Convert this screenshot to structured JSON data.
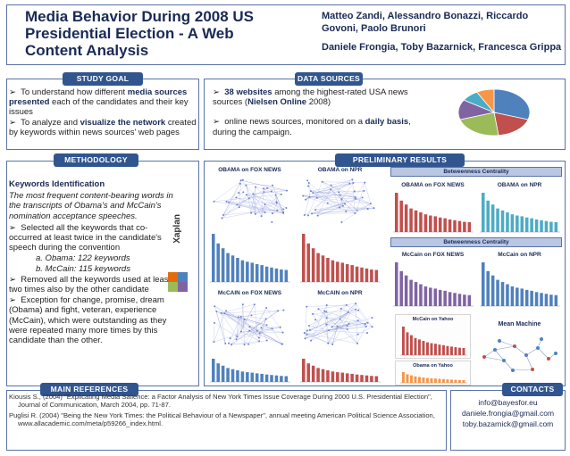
{
  "title": {
    "main": "Media Behavior During 2008 US Presidential Election - A Web Content Analysis",
    "authors_line1": "Matteo Zandi, Alessandro Bonazzi, Riccardo Govoni, Paolo Brunori",
    "authors_line2": "Daniele Frongia, Toby Bazarnick, Francesca Grippa"
  },
  "study_goal": {
    "header": "STUDY GOAL",
    "items": [
      [
        "To understand how different ",
        "media sources presented",
        " each of the candidates and their key issues"
      ],
      [
        "To analyze and ",
        "visualize the network",
        " created by keywords within news sources' web pages"
      ]
    ]
  },
  "data_sources": {
    "header": "DATA SOURCES",
    "item1_bold": "38 websites",
    "item1_a": " among the highest-rated USA news sources (",
    "item1_bold2": "Nielsen Online",
    "item1_b": " 2008)",
    "item2_a": "online news sources, monitored on a ",
    "item2_bold": "daily basis",
    "item2_b": ", during the campaign.",
    "pie": {
      "values": [
        30,
        18,
        22,
        14,
        8,
        8
      ],
      "colors": [
        "#4f81bd",
        "#c0504d",
        "#9bbb59",
        "#8064a2",
        "#4bacc6",
        "#f79646"
      ]
    }
  },
  "methodology": {
    "header": "METHODOLOGY",
    "subtitle": "Keywords Identification",
    "intro": "The most frequent content-bearing words in the transcripts of Obama's and McCain's nomination acceptance speeches.",
    "step1": "Selected all the keywords that co-occurred at least twice in the candidate's speech during the convention",
    "sub_a": "a.  Obama: 122 keywords",
    "sub_b": "b.  McCain: 115 keywords",
    "step2": "Removed all the keywords used at least two times also by the other candidate",
    "step3": "Exception for change, promise, dream (Obama)  and fight, veteran, experience (McCain), which were outstanding as they were repeated many more times by this candidate than the other.",
    "logo_text": "Xaplan"
  },
  "results": {
    "header": "PRELIMINARY RESULTS",
    "obama_fox": "OBAMA on FOX NEWS",
    "obama_npr": "OBAMA on NPR",
    "mccain_fox": "McCAIN on FOX NEWS",
    "mccain_npr": "McCAIN on NPR",
    "betweenness": "Betweenness Centrality",
    "bc_obama_fox": "OBAMA on FOX NEWS",
    "bc_obama_npr": "OBAMA on NPR",
    "bc_mccain_fox": "McCain on FOX NEWS",
    "bc_mccain_npr": "McCain on NPR",
    "mccain_yahoo": "McCain on Yahoo",
    "obama_yahoo": "Obama on Yahoo",
    "mean_machine": "Mean Machine",
    "bar_values": [
      100,
      80,
      70,
      60,
      55,
      50,
      45,
      42,
      40,
      37,
      35,
      32,
      30,
      28,
      26,
      25
    ],
    "colors": {
      "red": "#c0504d",
      "blue": "#4f81bd",
      "teal": "#4bacc6",
      "purple": "#8064a2",
      "orange": "#f79646",
      "network": "#6f7fd0"
    }
  },
  "references": {
    "header": "MAIN REFERENCES",
    "ref1": "Kiousis S., (2004) \"Explicating Media Salience: a Factor Analysis of New York Times Issue Coverage During 2000 U.S. Presidential Election\", Journal of Communication, March 2004, pp. 71-87.",
    "ref2": "Puglisi R. (2004) \"Being the New York Times: the Political Behaviour of a Newspaper\", annual meeting American Political Science Association, www.allacademic.com/meta/p59266_index.html."
  },
  "contacts": {
    "header": "CONTACTS",
    "lines": [
      "info@bayesfor.eu",
      "daniele.frongia@gmail.com",
      "toby.bazarnick@gmail.com"
    ]
  }
}
